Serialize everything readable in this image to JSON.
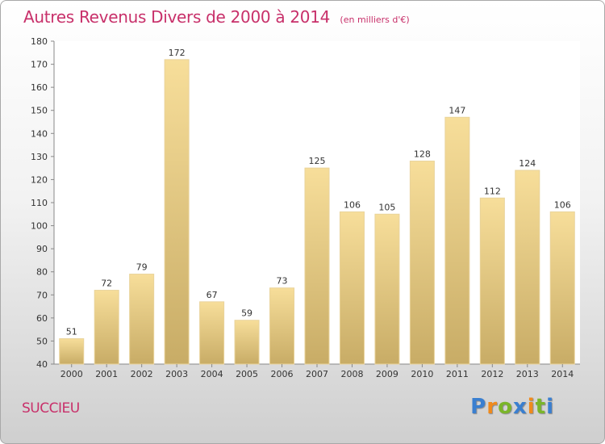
{
  "title": {
    "main": "Autres Revenus Divers de 2000 à 2014",
    "unit": "(en milliers d'€)"
  },
  "location": "SUCCIEU",
  "logo": {
    "letters": [
      {
        "char": "P",
        "color": "#3a7fd0"
      },
      {
        "char": "r",
        "color": "#f08a1c"
      },
      {
        "char": "o",
        "color": "#7ab52a"
      },
      {
        "char": "x",
        "color": "#3a7fd0"
      },
      {
        "char": "i",
        "color": "#f08a1c"
      },
      {
        "char": "t",
        "color": "#7ab52a"
      },
      {
        "char": "i",
        "color": "#3a7fd0"
      }
    ]
  },
  "chart_data": {
    "type": "bar",
    "title": "Autres Revenus Divers de 2000 à 2014",
    "categories": [
      "2000",
      "2001",
      "2002",
      "2003",
      "2004",
      "2005",
      "2006",
      "2007",
      "2008",
      "2009",
      "2010",
      "2011",
      "2012",
      "2013",
      "2014"
    ],
    "values": [
      51,
      72,
      79,
      172,
      67,
      59,
      73,
      125,
      106,
      105,
      128,
      147,
      112,
      124,
      106
    ],
    "ylim": [
      40,
      180
    ],
    "yticks": [
      40,
      50,
      60,
      70,
      80,
      90,
      100,
      110,
      120,
      130,
      140,
      150,
      160,
      170,
      180
    ],
    "grid": false,
    "bar_color_top": "#f7de9a",
    "bar_color_bottom": "#c8ac66"
  }
}
